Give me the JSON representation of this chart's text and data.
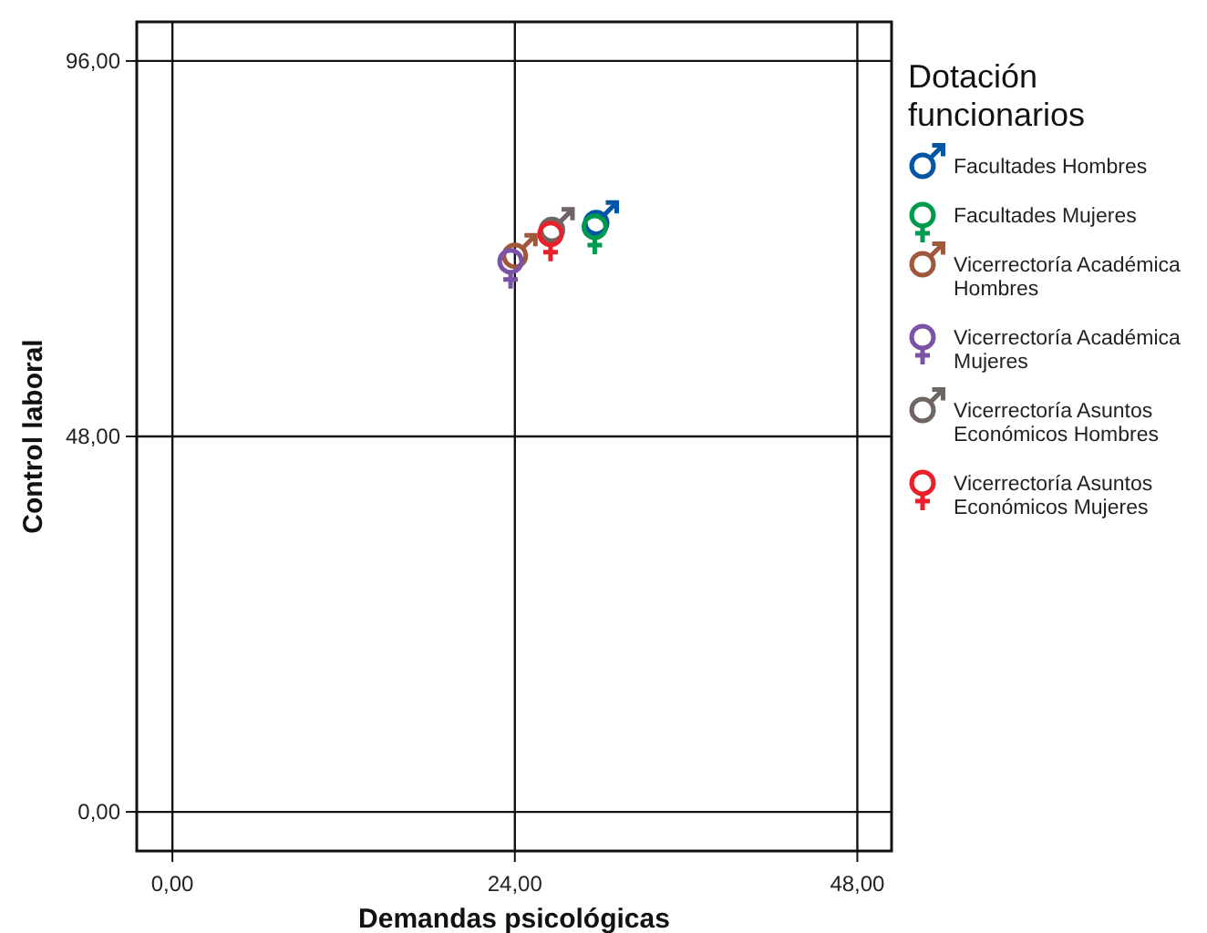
{
  "chart_data": {
    "type": "scatter",
    "xlabel": "Demandas psicológicas",
    "ylabel": "Control laboral",
    "legend_title": "Dotación funcionarios",
    "xlim": [
      -2.5,
      50.4
    ],
    "ylim": [
      -5,
      101
    ],
    "xticks": [
      {
        "value": 0,
        "label": "0,00"
      },
      {
        "value": 24,
        "label": "24,00"
      },
      {
        "value": 48,
        "label": "48,00"
      }
    ],
    "yticks": [
      {
        "value": 0,
        "label": "0,00"
      },
      {
        "value": 48,
        "label": "48,00"
      },
      {
        "value": 96,
        "label": "96,00"
      }
    ],
    "grid": true,
    "legend": "right",
    "series": [
      {
        "name": "Facultades Hombres",
        "color": "#0055a5",
        "x": [
          29.7
        ],
        "values": [
          75.3
        ]
      },
      {
        "name": "Facultades Mujeres",
        "color": "#009a4e",
        "x": [
          29.6
        ],
        "values": [
          74.8
        ]
      },
      {
        "name": "Vicerrectoría Académica Hombres",
        "color": "#a0583c",
        "x": [
          24.0
        ],
        "values": [
          71.1
        ]
      },
      {
        "name": "Vicerrectoría Académica Mujeres",
        "color": "#7a52a6",
        "x": [
          23.7
        ],
        "values": [
          70.4
        ]
      },
      {
        "name": "Vicerrectoría Asuntos Económicos Hombres",
        "color": "#6f6663",
        "x": [
          26.6
        ],
        "values": [
          74.4
        ]
      },
      {
        "name": "Vicerrectoría Asuntos Económicos Mujeres",
        "color": "#e8202a",
        "x": [
          26.5
        ],
        "values": [
          73.9
        ]
      }
    ]
  }
}
